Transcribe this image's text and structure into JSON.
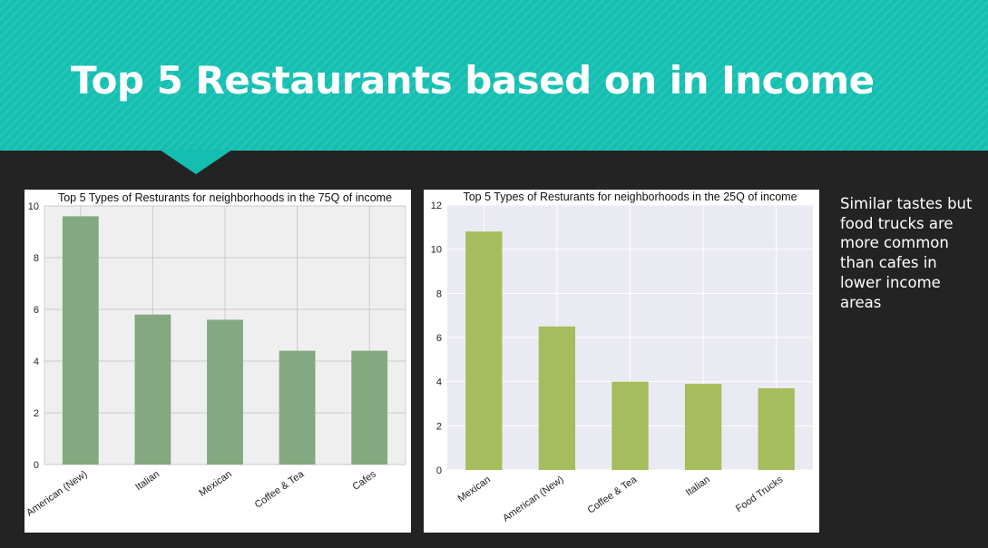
{
  "slide": {
    "title": "Top 5 Restaurants based on in Income",
    "note": "Similar tastes but food trucks are more common than cafes in lower income areas"
  },
  "colors": {
    "header": "#13bfb0",
    "background": "#232323",
    "chart1_bar": "#84a87f",
    "chart1_bg": "#efefef",
    "chart2_bar": "#a5bd5c",
    "chart2_bg": "#eaeaf2"
  },
  "chart_data": [
    {
      "type": "bar",
      "title": "Top 5 Types of Resturants for neighborhoods in the 75Q of income",
      "categories": [
        "American (New)",
        "Italian",
        "Mexican",
        "Coffee & Tea",
        "Cafes"
      ],
      "values": [
        9.6,
        5.8,
        5.6,
        4.4,
        4.4
      ],
      "ylim": [
        0,
        10
      ],
      "yticks": [
        "0",
        "2",
        "4",
        "6",
        "8",
        "10"
      ],
      "xlabel": "",
      "ylabel": "",
      "grid": true,
      "legend": "none"
    },
    {
      "type": "bar",
      "title": "Top 5 Types of Resturants for neighborhoods in the 25Q of income",
      "categories": [
        "Mexican",
        "American (New)",
        "Coffee & Tea",
        "Italian",
        "Food Trucks"
      ],
      "values": [
        10.8,
        6.5,
        4.0,
        3.9,
        3.7
      ],
      "ylim": [
        0,
        12
      ],
      "yticks": [
        "0",
        "2",
        "4",
        "6",
        "8",
        "10",
        "12"
      ],
      "xlabel": "",
      "ylabel": "",
      "grid": true,
      "legend": "none"
    }
  ]
}
